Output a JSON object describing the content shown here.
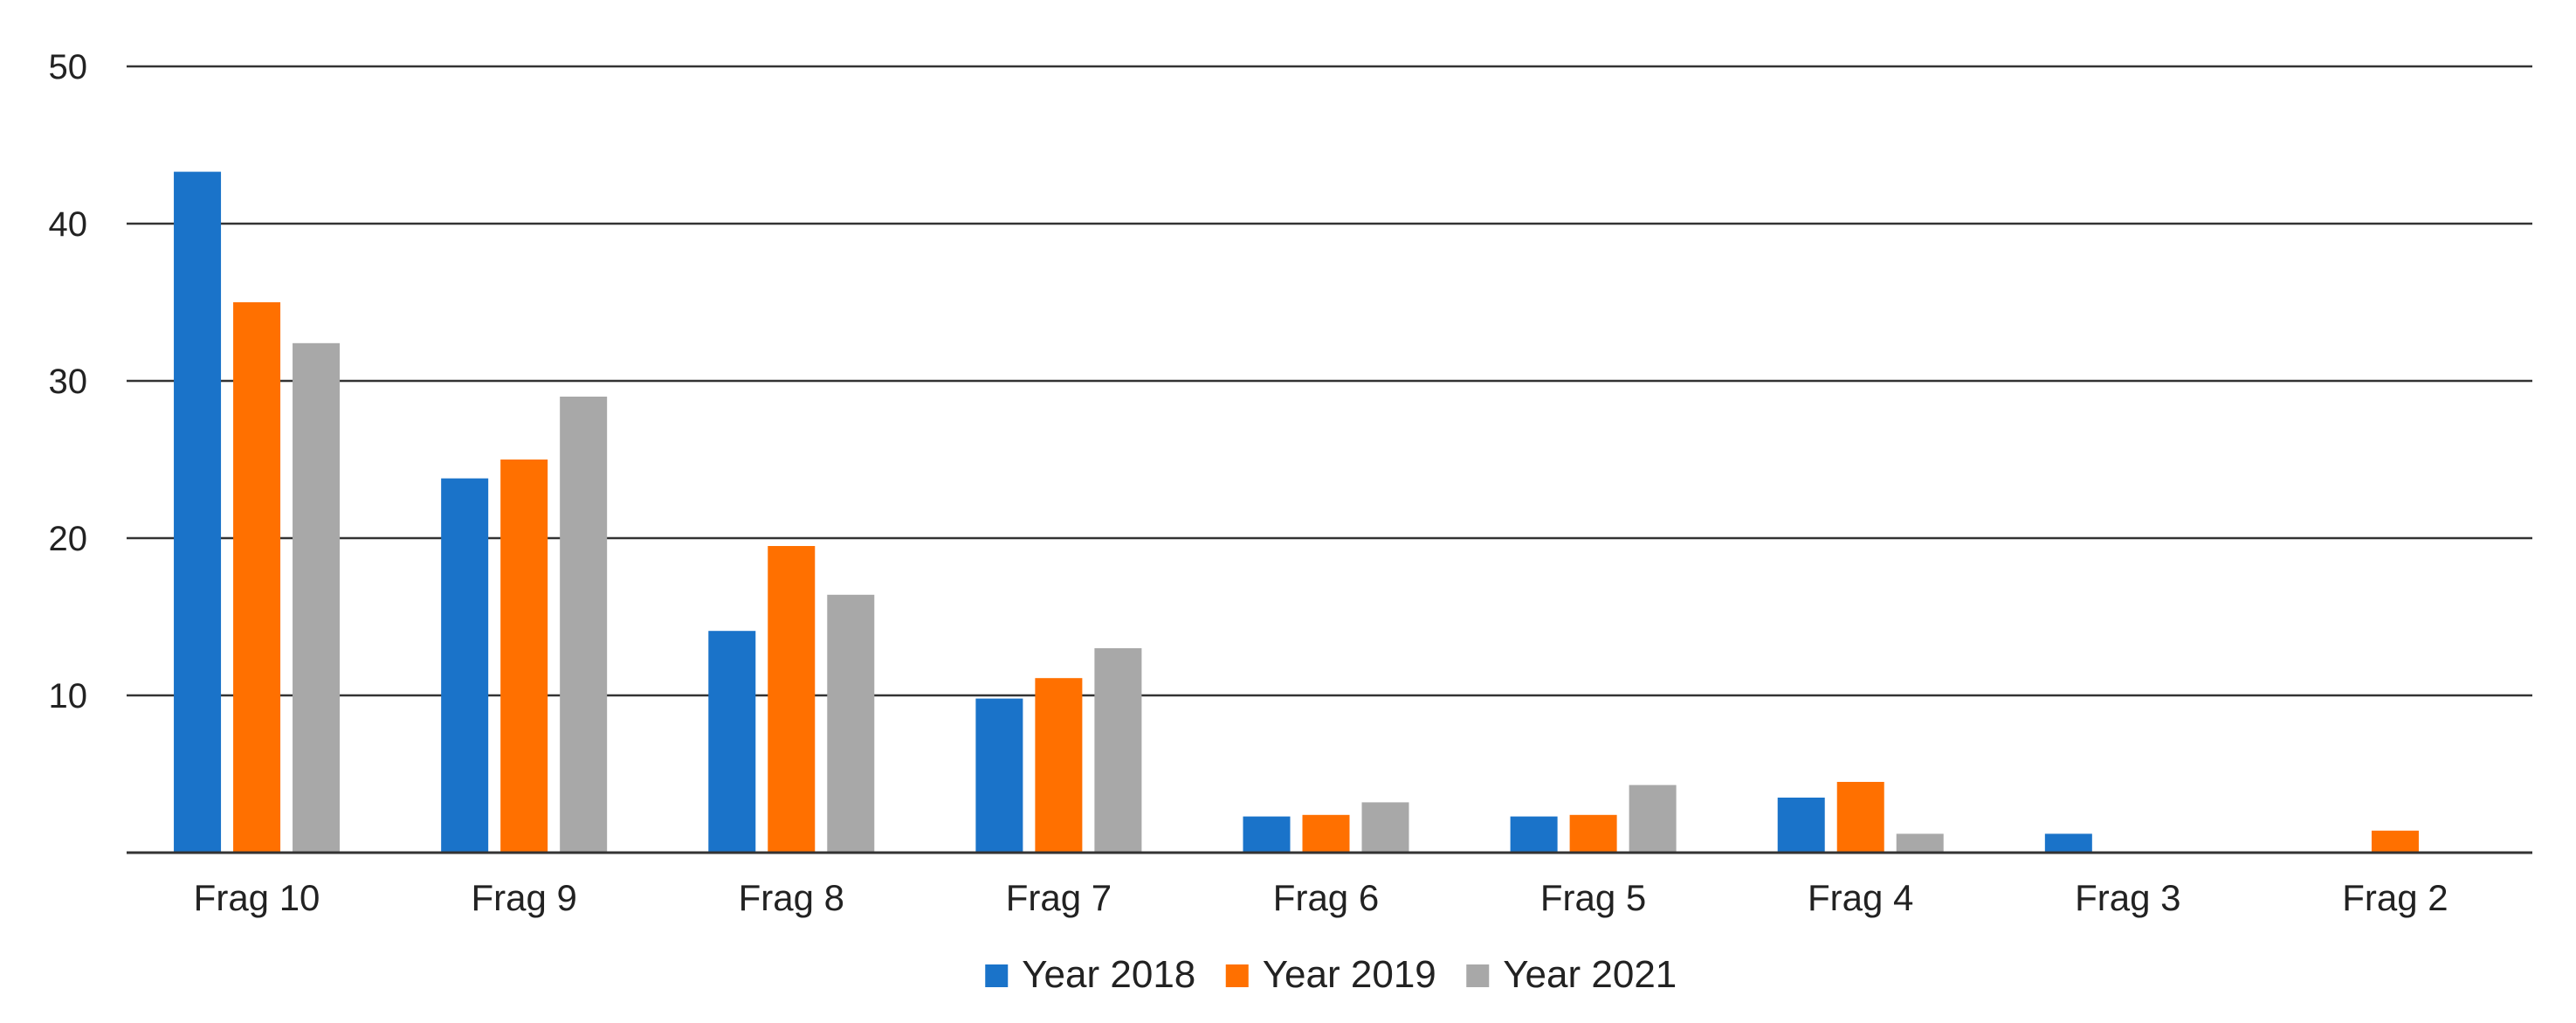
{
  "chart_data": {
    "type": "bar",
    "title": "",
    "xlabel": "",
    "ylabel": "",
    "categories": [
      "Frag 10",
      "Frag 9",
      "Frag 8",
      "Frag 7",
      "Frag 6",
      "Frag 5",
      "Frag 4",
      "Frag 3",
      "Frag 2"
    ],
    "series": [
      {
        "name": "Year 2018",
        "color": "#1a73c9",
        "values": [
          43.3,
          23.8,
          14.1,
          9.8,
          2.3,
          2.3,
          3.5,
          1.2,
          0
        ]
      },
      {
        "name": "Year 2019",
        "color": "#ff7000",
        "values": [
          35.0,
          25.0,
          19.5,
          11.1,
          2.4,
          2.4,
          4.5,
          0,
          1.4
        ]
      },
      {
        "name": "Year 2021",
        "color": "#a8a8a8",
        "values": [
          32.4,
          29.0,
          16.4,
          13.0,
          3.2,
          4.3,
          1.2,
          0,
          0
        ]
      }
    ],
    "ylim": [
      0,
      50
    ],
    "yticks": [
      10,
      20,
      30,
      40,
      50
    ],
    "grid": true,
    "legend_position": "bottom-center"
  }
}
